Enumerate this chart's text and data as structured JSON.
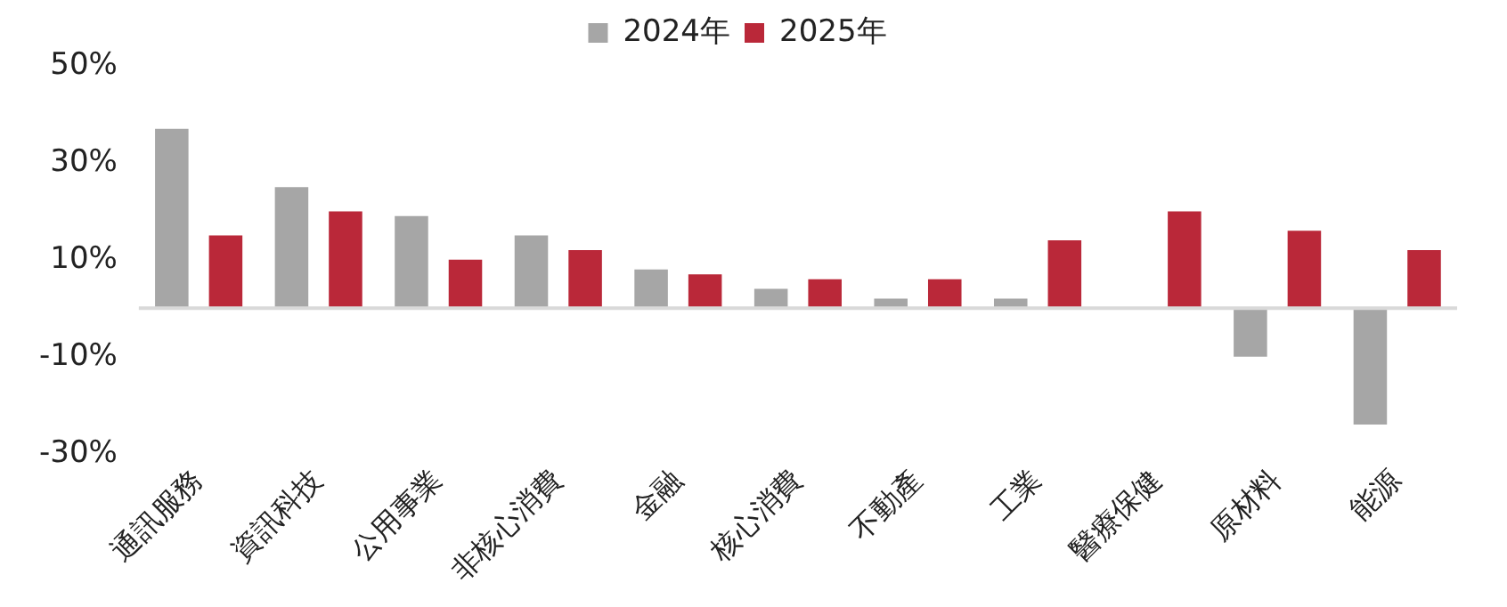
{
  "chart_data": {
    "type": "bar",
    "categories": [
      "通訊服務",
      "資訊科技",
      "公用事業",
      "非核心消費",
      "金融",
      "核心消費",
      "不動產",
      "工業",
      "醫療保健",
      "原材料",
      "能源"
    ],
    "series": [
      {
        "name": "2024年",
        "color": "#a6a6a6",
        "values": [
          37,
          25,
          19,
          15,
          8,
          4,
          2,
          2,
          null,
          -10,
          -24
        ]
      },
      {
        "name": "2025年",
        "color": "#ba2839",
        "values": [
          15,
          20,
          10,
          12,
          7,
          6,
          6,
          14,
          20,
          16,
          12
        ]
      }
    ],
    "ylim": [
      -30,
      50
    ],
    "yticks": [
      {
        "value": 50,
        "label": "50%"
      },
      {
        "value": 30,
        "label": "30%"
      },
      {
        "value": 10,
        "label": "10%"
      },
      {
        "value": -10,
        "label": "-10%"
      },
      {
        "value": -30,
        "label": "-30%"
      }
    ],
    "ref_lines": [
      {
        "axis": "y",
        "value": 0,
        "color": "#d9d9d9"
      }
    ],
    "grid": false,
    "legend": "top"
  }
}
